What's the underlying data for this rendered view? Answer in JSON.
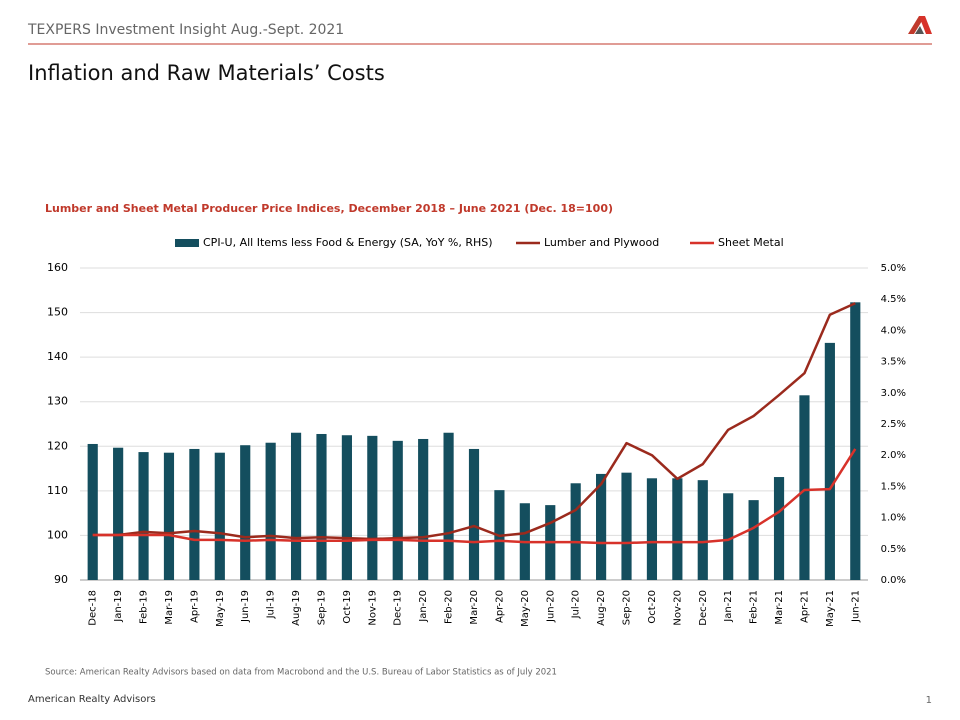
{
  "header": {
    "title": "TEXPERS Investment Insight Aug.-Sept. 2021",
    "heading": "Inflation and Raw Materials’ Costs"
  },
  "chart_data": {
    "type": "bar-line",
    "title": "Lumber and Sheet Metal Producer Price Indices, December 2018 – June 2021 (Dec. 18=100)",
    "categories": [
      "Dec-18",
      "Jan-19",
      "Feb-19",
      "Mar-19",
      "Apr-19",
      "May-19",
      "Jun-19",
      "Jul-19",
      "Aug-19",
      "Sep-19",
      "Oct-19",
      "Nov-19",
      "Dec-19",
      "Jan-20",
      "Feb-20",
      "Mar-20",
      "Apr-20",
      "May-20",
      "Jun-20",
      "Jul-20",
      "Aug-20",
      "Sep-20",
      "Oct-20",
      "Nov-20",
      "Dec-20",
      "Jan-21",
      "Feb-21",
      "Mar-21",
      "Apr-21",
      "May-21",
      "Jun-21"
    ],
    "series": [
      {
        "name": "CPI-U, All Items less Food & Energy (SA, YoY %, RHS)",
        "type": "bar",
        "axis": "y2",
        "color": "#144e5e",
        "values": [
          2.18,
          2.12,
          2.05,
          2.04,
          2.1,
          2.04,
          2.16,
          2.2,
          2.36,
          2.34,
          2.32,
          2.31,
          2.23,
          2.26,
          2.36,
          2.1,
          1.44,
          1.23,
          1.2,
          1.55,
          1.7,
          1.72,
          1.63,
          1.63,
          1.6,
          1.39,
          1.28,
          1.65,
          2.96,
          3.8,
          4.45
        ]
      },
      {
        "name": "Lumber and Plywood",
        "type": "line",
        "color": "#9b2a1d",
        "values": [
          100.1,
          100.1,
          100.8,
          100.5,
          101.0,
          100.5,
          99.6,
          99.9,
          99.4,
          99.6,
          99.4,
          99.2,
          99.4,
          99.6,
          100.5,
          102.1,
          99.9,
          100.5,
          102.8,
          105.7,
          111.5,
          120.7,
          118.0,
          112.7,
          116.0,
          123.7,
          126.8,
          131.5,
          136.4,
          149.5,
          152.1
        ]
      },
      {
        "name": "Sheet Metal",
        "type": "line",
        "color": "#d7322a",
        "values": [
          100.1,
          100.1,
          100.1,
          100.1,
          99.0,
          99.0,
          98.8,
          99.0,
          98.8,
          98.8,
          98.8,
          99.0,
          99.0,
          98.8,
          98.8,
          98.5,
          98.8,
          98.5,
          98.5,
          98.5,
          98.3,
          98.3,
          98.5,
          98.5,
          98.5,
          99.0,
          101.7,
          105.3,
          110.2,
          110.4,
          119.4
        ]
      }
    ],
    "ylim": [
      90,
      160
    ],
    "yticks": [
      90,
      100,
      110,
      120,
      130,
      140,
      150,
      160
    ],
    "y2lim": [
      0,
      5
    ],
    "y2ticks": [
      {
        "value": 0,
        "label": "0.0%"
      },
      {
        "value": 0.5,
        "label": "0.5%"
      },
      {
        "value": 1,
        "label": "1.0%"
      },
      {
        "value": 1.5,
        "label": "1.5%"
      },
      {
        "value": 2,
        "label": "2.0%"
      },
      {
        "value": 2.5,
        "label": "2.5%"
      },
      {
        "value": 3,
        "label": "3.0%"
      },
      {
        "value": 3.5,
        "label": "3.5%"
      },
      {
        "value": 4,
        "label": "4.0%"
      },
      {
        "value": 4.5,
        "label": "4.5%"
      },
      {
        "value": 5,
        "label": "5.0%"
      }
    ],
    "grid": true,
    "legend": "top",
    "source": "Source: American Realty Advisors based on data from Macrobond and the U.S. Bureau of Labor Statistics as of July 2021"
  },
  "footer": {
    "company": "American Realty Advisors",
    "page": "1"
  }
}
